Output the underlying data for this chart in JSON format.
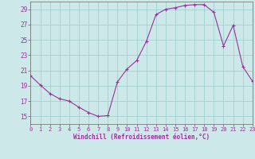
{
  "hours": [
    0,
    1,
    2,
    3,
    4,
    5,
    6,
    7,
    8,
    9,
    10,
    11,
    12,
    13,
    14,
    15,
    16,
    17,
    18,
    19,
    20,
    21,
    22,
    23
  ],
  "values": [
    20.3,
    19.1,
    18.0,
    17.3,
    17.0,
    16.2,
    15.5,
    15.0,
    15.1,
    19.5,
    21.2,
    22.3,
    24.8,
    28.3,
    29.0,
    29.2,
    29.5,
    29.6,
    29.6,
    28.6,
    24.2,
    26.9,
    21.5,
    19.6
  ],
  "line_color": "#993399",
  "marker": "+",
  "marker_size": 3,
  "bg_color": "#cce8e8",
  "grid_color": "#99cccc",
  "xlabel": "Windchill (Refroidissement éolien,°C)",
  "xlabel_color": "#993399",
  "tick_color": "#993399",
  "axis_color": "#666666",
  "ylim": [
    14,
    30
  ],
  "yticks": [
    15,
    17,
    19,
    21,
    23,
    25,
    27,
    29
  ],
  "xlim": [
    0,
    23
  ],
  "xticks": [
    0,
    1,
    2,
    3,
    4,
    5,
    6,
    7,
    8,
    9,
    10,
    11,
    12,
    13,
    14,
    15,
    16,
    17,
    18,
    19,
    20,
    21,
    22,
    23
  ]
}
